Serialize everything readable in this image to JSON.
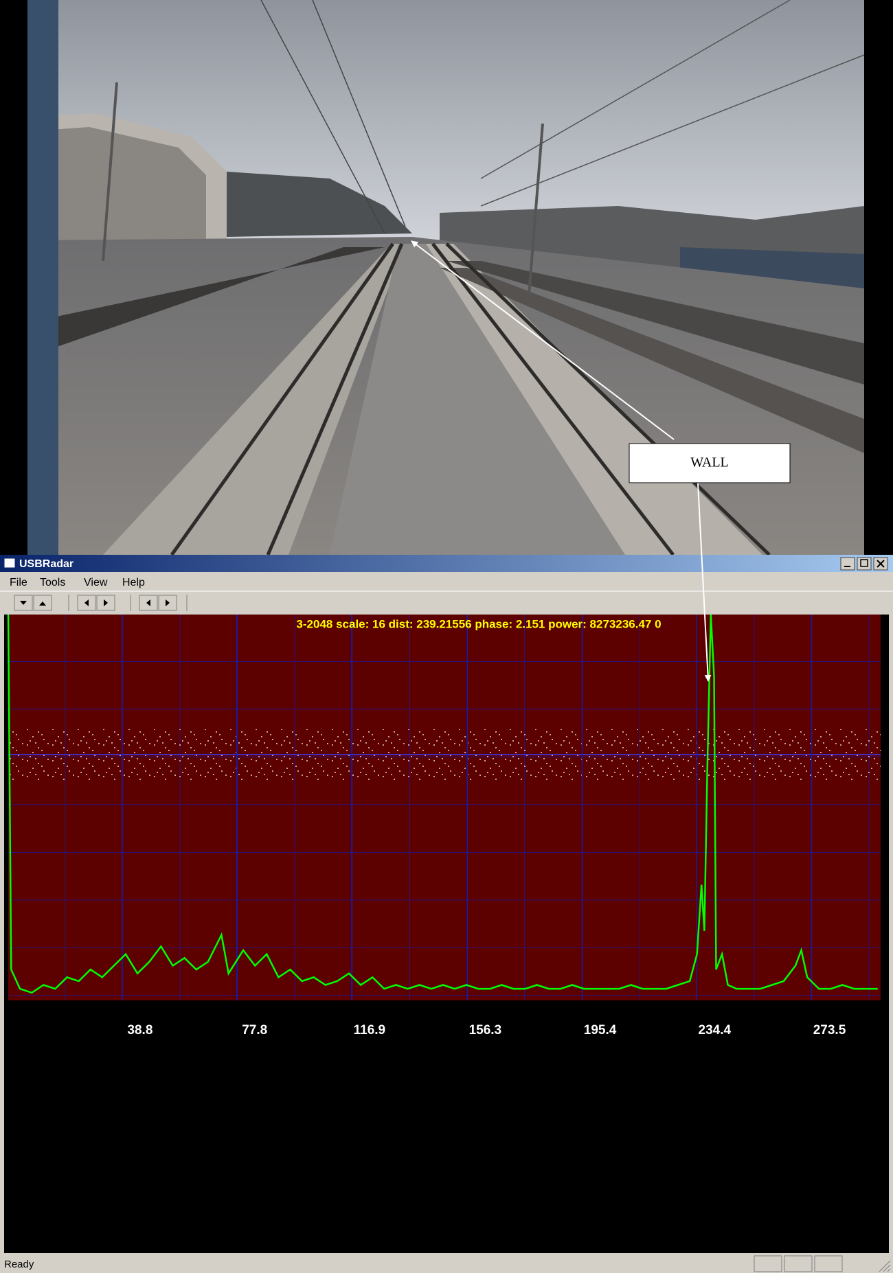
{
  "photo": {
    "annotation": "WALL"
  },
  "window": {
    "title": "USBRadar",
    "menu": [
      "File",
      "Tools",
      "View",
      "Help"
    ],
    "status": "Ready"
  },
  "chart_data": {
    "type": "line",
    "readout": "3-2048 scale: 16 dist: 239.21556 phase: 2.151 power: 8273236.47 0",
    "color": "#00ff00",
    "x": [
      0,
      1,
      4,
      8,
      12,
      16,
      20,
      24,
      28,
      32,
      36,
      40,
      44,
      48,
      52,
      56,
      60,
      64,
      68,
      72.6,
      75,
      80,
      84,
      88,
      92,
      96,
      100,
      104,
      108,
      112,
      116,
      120,
      124,
      128,
      132,
      136,
      140,
      144,
      148,
      152,
      156,
      160,
      164,
      168,
      172,
      176,
      180,
      184,
      188,
      192,
      196,
      200,
      204,
      208,
      212,
      216,
      220,
      224,
      228,
      232,
      234.5,
      236,
      237,
      238,
      239.2,
      240.3,
      241,
      243,
      245,
      248,
      252,
      256,
      260,
      264,
      268,
      270,
      272,
      276,
      280,
      284,
      288,
      292,
      296
    ],
    "values": [
      100,
      8,
      3,
      2,
      4,
      3,
      6,
      5,
      8,
      6,
      9,
      12,
      7,
      10,
      14,
      9,
      11,
      8,
      10,
      17,
      7,
      13,
      9,
      12,
      6,
      8,
      5,
      6,
      4,
      5,
      7,
      4,
      6,
      3,
      4,
      3,
      4,
      3,
      4,
      3,
      4,
      3,
      3,
      4,
      3,
      3,
      4,
      3,
      3,
      4,
      3,
      3,
      3,
      3,
      4,
      3,
      3,
      3,
      4,
      5,
      12,
      30,
      18,
      60,
      100,
      84,
      8,
      12,
      4,
      3,
      3,
      3,
      4,
      5,
      9,
      13,
      6,
      3,
      3,
      4,
      3,
      3,
      3
    ],
    "xlim": [
      0,
      297
    ],
    "ylim": [
      0,
      100
    ],
    "xticks": [
      38.8,
      77.8,
      116.9,
      156.3,
      195.4,
      234.4,
      273.5
    ]
  }
}
